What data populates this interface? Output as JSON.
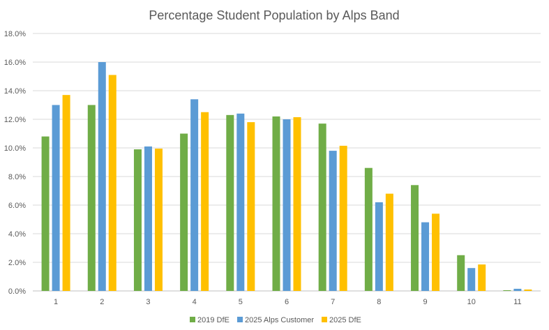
{
  "chart_data": {
    "type": "bar",
    "title": "Percentage Student Population by Alps Band",
    "xlabel": "",
    "ylabel": "",
    "categories": [
      "1",
      "2",
      "3",
      "4",
      "5",
      "6",
      "7",
      "8",
      "9",
      "10",
      "11"
    ],
    "ylim": [
      0,
      18
    ],
    "yticks": [
      "0.0%",
      "2.0%",
      "4.0%",
      "6.0%",
      "8.0%",
      "10.0%",
      "12.0%",
      "14.0%",
      "16.0%",
      "18.0%"
    ],
    "grid": true,
    "legend": "bottom",
    "series": [
      {
        "name": "2019 DfE",
        "color": "#70AD47",
        "values": [
          10.8,
          13.0,
          9.9,
          11.0,
          12.3,
          12.2,
          11.7,
          8.6,
          7.4,
          2.5,
          0.05
        ]
      },
      {
        "name": "2025 Alps Customer",
        "color": "#5B9BD5",
        "values": [
          13.0,
          16.0,
          10.1,
          13.4,
          12.4,
          12.0,
          9.8,
          6.2,
          4.8,
          1.6,
          0.15
        ]
      },
      {
        "name": "2025 DfE",
        "color": "#FFC000",
        "values": [
          13.7,
          15.1,
          9.95,
          12.5,
          11.8,
          12.15,
          10.15,
          6.8,
          5.4,
          1.85,
          0.1
        ]
      }
    ]
  }
}
